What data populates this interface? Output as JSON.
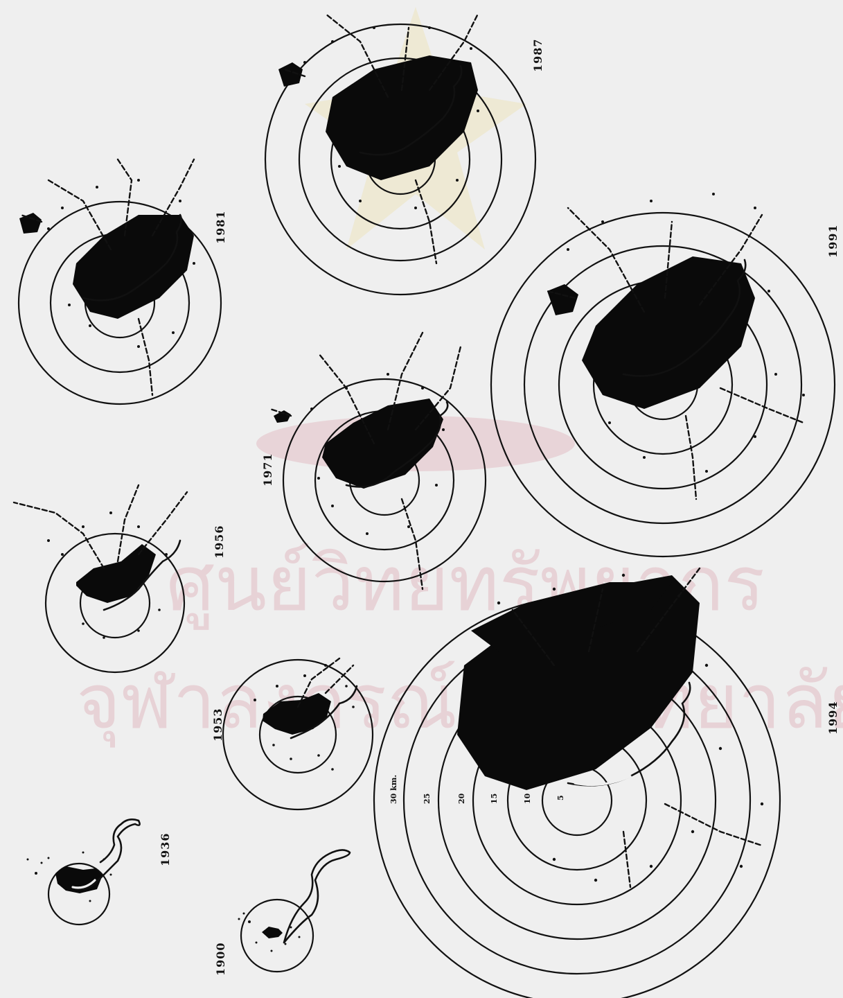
{
  "watermark": {
    "line1": "ศูนย์วิทยทรัพยากร",
    "line2": "จุฬาลงกรณ์มหาวิทยาลัย"
  },
  "maps": [
    {
      "year": "1900",
      "rings": 1
    },
    {
      "year": "1936",
      "rings": 1
    },
    {
      "year": "1953",
      "rings": 2
    },
    {
      "year": "1956",
      "rings": 2
    },
    {
      "year": "1971",
      "rings": 3
    },
    {
      "year": "1981",
      "rings": 3
    },
    {
      "year": "1987",
      "rings": 4
    },
    {
      "year": "1991",
      "rings": 5
    },
    {
      "year": "1994",
      "rings": 6
    }
  ],
  "scale": {
    "labels": [
      "5",
      "10",
      "15",
      "20",
      "25",
      "30 km."
    ]
  }
}
